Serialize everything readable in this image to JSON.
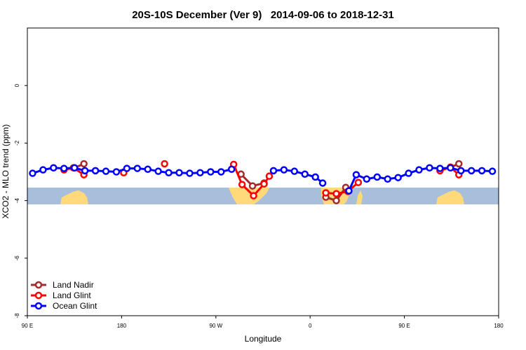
{
  "chart_data": {
    "type": "line",
    "title": "20S-10S December (Ver 9)   2014-09-06 to 2018-12-31",
    "xlabel": "Longitude",
    "ylabel": "XCO2 - MLO trend (ppm)",
    "xlim": [
      90,
      540
    ],
    "ylim": [
      -8,
      2
    ],
    "xticks": [
      {
        "value": 90,
        "label": "90 E"
      },
      180,
      {
        "value": 270,
        "label": "90 W"
      },
      {
        "value": 360,
        "label": "0"
      },
      {
        "value": 450,
        "label": "90 E"
      },
      {
        "value": 540,
        "label": "180"
      }
    ],
    "yticks": [
      -8,
      -6,
      -4,
      -2,
      0
    ],
    "legend": "bottomleft",
    "series": [
      {
        "name": "Land Nadir",
        "color": "#a52a2a",
        "x": [
          135,
          144,
          null,
          294,
          305,
          316,
          null,
          375,
          385,
          394,
          null,
          494,
          502
        ],
        "values": [
          -2.86,
          -2.72,
          null,
          -3.08,
          -3.49,
          -3.39,
          null,
          -3.88,
          -4.0,
          -3.54,
          null,
          -2.84,
          -2.72
        ]
      },
      {
        "name": "Land Glint",
        "color": "#ff0000",
        "x": [
          125,
          134,
          144,
          null,
          182,
          null,
          221,
          null,
          287,
          295,
          306,
          316,
          321,
          null,
          375,
          385,
          396,
          406,
          null,
          484,
          494,
          502
        ],
        "values": [
          -2.93,
          -2.86,
          -3.1,
          null,
          -3.03,
          null,
          -2.72,
          null,
          -2.74,
          -3.44,
          -3.83,
          -3.42,
          -3.15,
          null,
          -3.73,
          -3.76,
          -3.68,
          -3.37,
          null,
          -2.96,
          -2.84,
          -3.1
        ]
      },
      {
        "name": "Ocean Glint",
        "color": "#0000ff",
        "x": [
          95,
          105,
          115,
          125,
          135,
          145,
          155,
          165,
          175,
          185,
          195,
          205,
          215,
          225,
          235,
          245,
          255,
          265,
          275,
          285,
          null,
          325,
          335,
          345,
          355,
          365,
          372,
          null,
          397,
          404,
          414,
          424,
          434,
          444,
          454,
          464,
          474,
          484,
          494,
          504,
          514,
          524,
          534
        ],
        "values": [
          -3.05,
          -2.93,
          -2.86,
          -2.88,
          -2.86,
          -2.96,
          -2.96,
          -2.98,
          -3.0,
          -2.88,
          -2.88,
          -2.91,
          -2.98,
          -3.03,
          -3.03,
          -3.05,
          -3.03,
          -3.0,
          -3.0,
          -2.91,
          null,
          -2.96,
          -2.93,
          -2.98,
          -3.08,
          -3.18,
          -3.39,
          null,
          -3.66,
          -3.1,
          -3.25,
          -3.18,
          -3.25,
          -3.2,
          -3.05,
          -2.93,
          -2.86,
          -2.88,
          -2.86,
          -2.96,
          -2.96,
          -2.96,
          -2.98
        ]
      }
    ]
  }
}
